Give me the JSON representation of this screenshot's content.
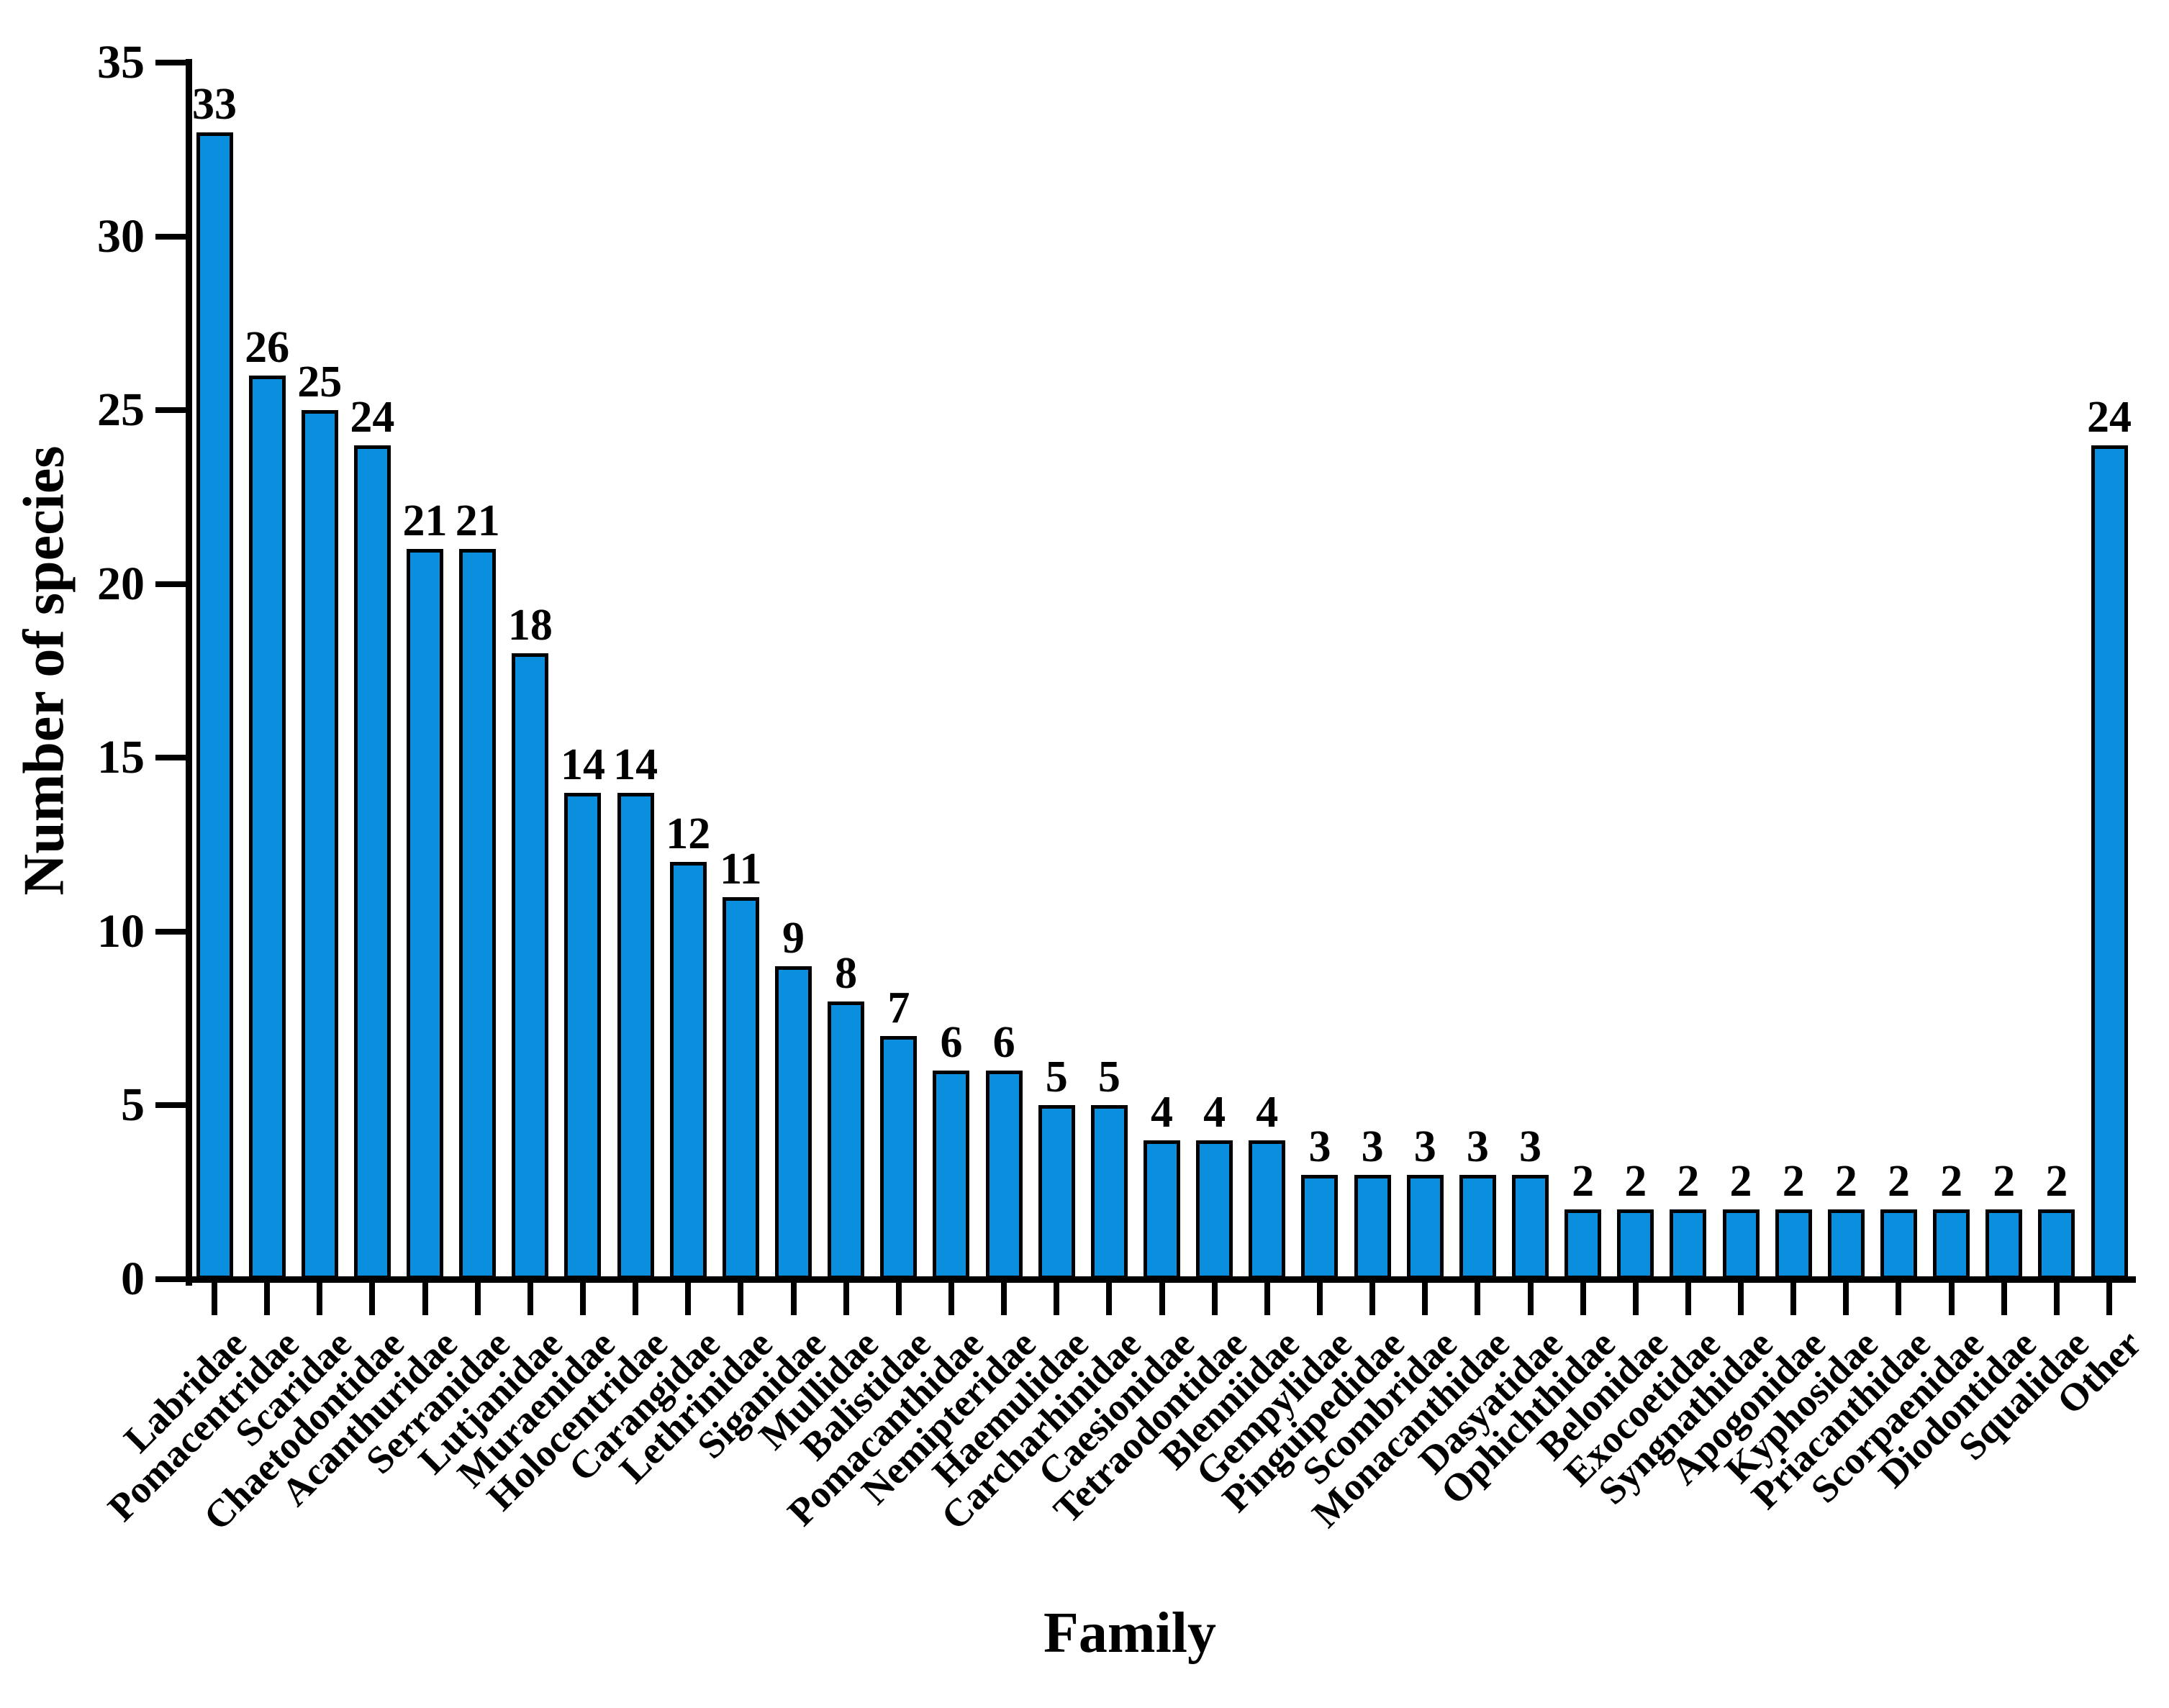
{
  "figure": {
    "background": "#ffffff",
    "text_color": "#000000"
  },
  "chart_data": {
    "type": "bar",
    "title": "",
    "xlabel": "Family",
    "ylabel": "Number of species",
    "categories": [
      "Labridae",
      "Pomacentridae",
      "Scaridae",
      "Chaetodontidae",
      "Acanthuridae",
      "Serranidae",
      "Lutjanidae",
      "Muraenidae",
      "Holocentridae",
      "Carangidae",
      "Lethrinidae",
      "Siganidae",
      "Mullidae",
      "Balistidae",
      "Pomacanthidae",
      "Nemipteridae",
      "Haemulidae",
      "Carcharhinidae",
      "Caesionidae",
      "Tetraodontidae",
      "Blenniidae",
      "Gempylidae",
      "Pinguipedidae",
      "Scombridae",
      "Monacanthidae",
      "Dasyatidae",
      "Ophichthidae",
      "Belonidae",
      "Exocoetidae",
      "Syngnathidae",
      "Apogonidae",
      "Kyphosidae",
      "Priacanthidae",
      "Scorpaenidae",
      "Diodontidae",
      "Squalidae",
      "Other"
    ],
    "values": [
      33,
      26,
      25,
      24,
      21,
      21,
      18,
      14,
      14,
      12,
      11,
      9,
      8,
      7,
      6,
      6,
      5,
      5,
      4,
      4,
      4,
      3,
      3,
      3,
      3,
      3,
      2,
      2,
      2,
      2,
      2,
      2,
      2,
      2,
      2,
      2,
      24
    ],
    "value_labels_shown": true,
    "ylim": [
      0,
      35
    ],
    "yticks": [
      0,
      5,
      10,
      15,
      20,
      25,
      30,
      35
    ],
    "grid": "off",
    "legend": "none",
    "bar_color": "#0A8EDE",
    "bar_border_color": "#000000",
    "xlabel_rotation_deg": 45
  }
}
